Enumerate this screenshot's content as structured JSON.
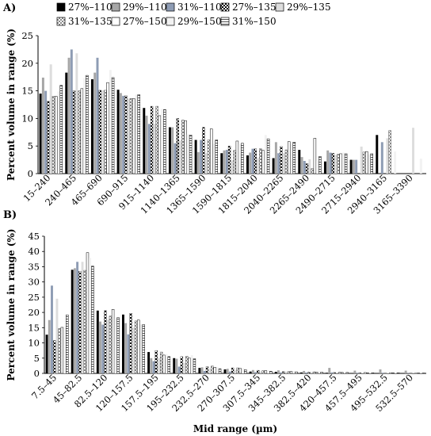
{
  "figure": {
    "panelA_label": "A)",
    "panelB_label": "B)"
  },
  "legend": [
    {
      "name": "27%–110",
      "fill": "#000000",
      "pattern": "solid"
    },
    {
      "name": "29%–110",
      "fill": "#a6a6a6",
      "pattern": "solid"
    },
    {
      "name": "31%–110",
      "fill": "#8e9cb4",
      "pattern": "solid"
    },
    {
      "name": "27%–135",
      "fill": "#404040",
      "pattern": "checker"
    },
    {
      "name": "29%–135",
      "fill": "#dddddd",
      "pattern": "solid"
    },
    {
      "name": "31%–135",
      "fill": "#bfbfbf",
      "pattern": "checker"
    },
    {
      "name": "27%–150",
      "fill": "#ffffff",
      "pattern": "solid"
    },
    {
      "name": "29%–150",
      "fill": "#f2f2f2",
      "pattern": "solid"
    },
    {
      "name": "31%–150",
      "fill": "#ffffff",
      "pattern": "hstripes"
    }
  ],
  "chart_data": [
    {
      "type": "bar",
      "ylabel": "Percent volume in range (%)",
      "xlabel": "",
      "ylim": [
        0,
        25
      ],
      "yticks": [
        0,
        5,
        10,
        15,
        20,
        25
      ],
      "categories": [
        "15–240",
        "240–465",
        "465–690",
        "690–915",
        "915–1140",
        "1140–1365",
        "1365–1590",
        "1590–1815",
        "1815–2040",
        "2040–2265",
        "2265–2490",
        "2490–2715",
        "2715–2940",
        "2940–3165",
        "3165–3390"
      ],
      "series": [
        {
          "name": "27%–110",
          "values": [
            14.5,
            18.3,
            17.1,
            15.2,
            11.9,
            8.4,
            6.1,
            3.7,
            3.3,
            2.8,
            4.3,
            2.2,
            2.5,
            7.0,
            0
          ]
        },
        {
          "name": "29%–110",
          "values": [
            17.4,
            21.0,
            18.3,
            14.6,
            10.5,
            8.4,
            3.9,
            4.2,
            3.8,
            5.7,
            3.0,
            4.2,
            2.5,
            0,
            0
          ]
        },
        {
          "name": "31%–110",
          "values": [
            15.0,
            22.5,
            21.0,
            14.1,
            9.0,
            5.5,
            6.1,
            4.3,
            4.5,
            3.7,
            2.3,
            3.8,
            2.5,
            5.7,
            0
          ]
        },
        {
          "name": "27%–135",
          "values": [
            13.1,
            15.0,
            15.1,
            14.1,
            12.2,
            10.0,
            8.4,
            5.0,
            4.5,
            4.9,
            1.8,
            3.7,
            0,
            0,
            0
          ]
        },
        {
          "name": "29%–135",
          "values": [
            19.8,
            21.8,
            15.1,
            13.6,
            9.0,
            6.0,
            3.7,
            2.4,
            2.8,
            3.7,
            2.6,
            3.4,
            4.9,
            6.4,
            8.3
          ]
        },
        {
          "name": "31%–135",
          "values": [
            14.0,
            15.0,
            15.1,
            13.6,
            12.2,
            9.7,
            6.1,
            4.2,
            4.5,
            4.3,
            0.9,
            3.5,
            3.9,
            7.8,
            0
          ]
        },
        {
          "name": "27%–150",
          "values": [
            14.0,
            15.4,
            16.5,
            13.6,
            10.5,
            9.6,
            8.1,
            5.9,
            4.2,
            5.8,
            6.4,
            3.6,
            4.0,
            0,
            0
          ]
        },
        {
          "name": "29%–150",
          "values": [
            14.9,
            17.3,
            18.8,
            14.3,
            11.7,
            7.1,
            5.4,
            5.4,
            7.0,
            5.3,
            2.3,
            3.8,
            3.5,
            4.0,
            2.7
          ]
        },
        {
          "name": "31%–150",
          "values": [
            16.0,
            17.8,
            17.4,
            14.3,
            11.6,
            7.0,
            6.1,
            5.5,
            6.3,
            5.7,
            3.1,
            3.6,
            3.6,
            0,
            0
          ]
        }
      ]
    },
    {
      "type": "bar",
      "ylabel": "Percent volume in range (%)",
      "xlabel": "Mid range (µm)",
      "ylim": [
        0,
        45
      ],
      "yticks": [
        0,
        5,
        10,
        15,
        20,
        25,
        30,
        35,
        40,
        45
      ],
      "categories": [
        "7.5–45",
        "45–82.5",
        "82.5–120",
        "120–157.5",
        "157.5–195",
        "195–232.5",
        "232.5–270",
        "270–307.5",
        "307.5–345",
        "345–382.5",
        "382.5–420",
        "420–457.5",
        "457.5–495",
        "495–532.5",
        "532.5–570"
      ],
      "series": [
        {
          "name": "27%–110",
          "values": [
            12.7,
            34.0,
            20.6,
            19.3,
            7.0,
            5.0,
            1.8,
            1.3,
            0.6,
            0.5,
            0.3,
            0.2,
            0.1,
            0.1,
            0.1
          ]
        },
        {
          "name": "29%–110",
          "values": [
            17.5,
            34.5,
            17.0,
            16.5,
            5.0,
            4.8,
            2.0,
            1.5,
            1.1,
            1.0,
            0.8,
            1.8,
            0.9,
            1.3,
            0.9
          ]
        },
        {
          "name": "31%–110",
          "values": [
            28.8,
            36.6,
            16.0,
            12.8,
            4.0,
            2.2,
            0.8,
            0.6,
            0.4,
            0.3,
            0.3,
            0.3,
            0.2,
            0.2,
            0.1
          ]
        },
        {
          "name": "27%–135",
          "values": [
            10.8,
            33.5,
            20.6,
            19.7,
            7.5,
            5.5,
            2.2,
            1.8,
            1.0,
            0.6,
            0.4,
            0.3,
            0.2,
            0.1,
            0.1
          ]
        },
        {
          "name": "29%–135",
          "values": [
            24.5,
            36.6,
            17.6,
            15.0,
            5.0,
            3.5,
            1.5,
            1.0,
            0.6,
            0.5,
            0.4,
            0.3,
            0.2,
            0.2,
            0.1
          ]
        },
        {
          "name": "31%–135",
          "values": [
            14.7,
            33.8,
            18.8,
            17.2,
            7.0,
            5.6,
            2.4,
            1.8,
            0.9,
            0.6,
            0.5,
            0.4,
            0.3,
            0.2,
            0.1
          ]
        },
        {
          "name": "27%–150",
          "values": [
            15.1,
            39.6,
            21.0,
            17.5,
            6.0,
            5.0,
            2.0,
            1.6,
            0.9,
            0.6,
            0.4,
            0.3,
            0.2,
            0.2,
            0.1
          ]
        },
        {
          "name": "29%–150",
          "values": [
            15.2,
            37.9,
            18.0,
            16.0,
            6.3,
            6.0,
            2.1,
            1.7,
            1.0,
            0.7,
            0.6,
            0.4,
            0.3,
            0.2,
            0.1
          ]
        },
        {
          "name": "31%–150",
          "values": [
            19.2,
            35.2,
            18.3,
            16.0,
            5.5,
            4.8,
            1.5,
            1.2,
            0.7,
            0.5,
            0.4,
            0.3,
            0.2,
            0.2,
            0.1
          ]
        }
      ]
    }
  ]
}
